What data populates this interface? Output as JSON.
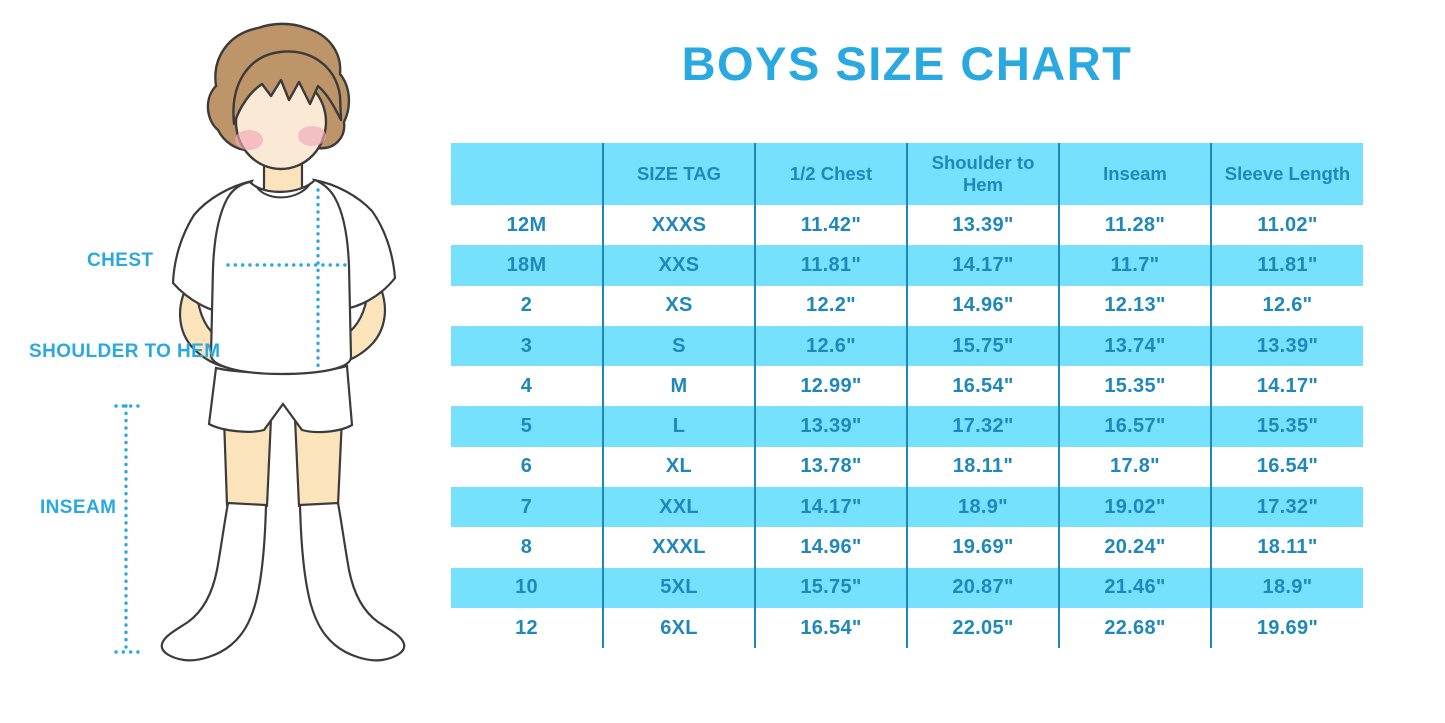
{
  "title": "BOYS SIZE CHART",
  "colors": {
    "accent": "#29A9E0",
    "table_fill": "#76E1FC",
    "table_ink": "#1F87BA"
  },
  "figure_labels": {
    "chest": "CHEST",
    "shoulder_to_hem": "SHOULDER TO HEM",
    "inseam": "INSEAM"
  },
  "chart_data": {
    "type": "table",
    "title": "BOYS SIZE CHART",
    "columns": [
      "",
      "SIZE TAG",
      "1/2 Chest",
      "Shoulder to Hem",
      "Inseam",
      "Sleeve Length"
    ],
    "rows": [
      [
        "12M",
        "XXXS",
        "11.42\"",
        "13.39\"",
        "11.28\"",
        "11.02\""
      ],
      [
        "18M",
        "XXS",
        "11.81\"",
        "14.17\"",
        "11.7\"",
        "11.81\""
      ],
      [
        "2",
        "XS",
        "12.2\"",
        "14.96\"",
        "12.13\"",
        "12.6\""
      ],
      [
        "3",
        "S",
        "12.6\"",
        "15.75\"",
        "13.74\"",
        "13.39\""
      ],
      [
        "4",
        "M",
        "12.99\"",
        "16.54\"",
        "15.35\"",
        "14.17\""
      ],
      [
        "5",
        "L",
        "13.39\"",
        "17.32\"",
        "16.57\"",
        "15.35\""
      ],
      [
        "6",
        "XL",
        "13.78\"",
        "18.11\"",
        "17.8\"",
        "16.54\""
      ],
      [
        "7",
        "XXL",
        "14.17\"",
        "18.9\"",
        "19.02\"",
        "17.32\""
      ],
      [
        "8",
        "XXXL",
        "14.96\"",
        "19.69\"",
        "20.24\"",
        "18.11\""
      ],
      [
        "10",
        "5XL",
        "15.75\"",
        "20.87\"",
        "21.46\"",
        "18.9\""
      ],
      [
        "12",
        "6XL",
        "16.54\"",
        "22.05\"",
        "22.68\"",
        "19.69\""
      ]
    ],
    "layout": {
      "striped_rows": true,
      "header_background": "#76E1FC",
      "stripe_background": "#76E1FC",
      "text_color": "#1F87BA",
      "column_dividers": true,
      "row_dividers": false
    }
  }
}
